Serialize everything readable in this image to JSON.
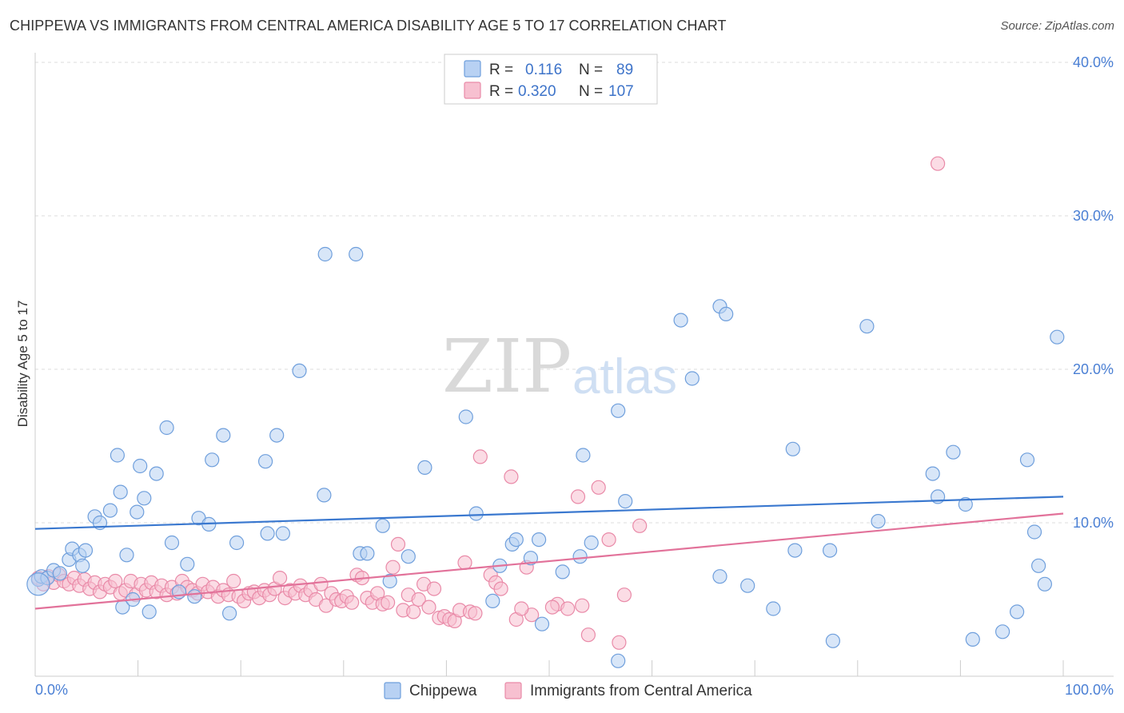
{
  "title": "CHIPPEWA VS IMMIGRANTS FROM CENTRAL AMERICA DISABILITY AGE 5 TO 17 CORRELATION CHART",
  "source": "Source: ZipAtlas.com",
  "watermark": {
    "zip": "ZIP",
    "atlas": "atlas"
  },
  "colors": {
    "blue_fill": "#b8d1f3",
    "blue_stroke": "#6f9fdc",
    "blue_line": "#3a78cf",
    "pink_fill": "#f7c0d0",
    "pink_stroke": "#e98aa8",
    "pink_line": "#e2729a",
    "grid": "#dddddd",
    "tick_text": "#4a7fd4"
  },
  "legend": {
    "rows": [
      {
        "r_label": "R =",
        "r_value": "0.116",
        "n_label": "N =",
        "n_value": "89"
      },
      {
        "r_label": "R =",
        "r_value": "0.320",
        "n_label": "N =",
        "n_value": "107"
      }
    ]
  },
  "chart_data": {
    "type": "scatter",
    "title": "CHIPPEWA VS IMMIGRANTS FROM CENTRAL AMERICA DISABILITY AGE 5 TO 17 CORRELATION CHART",
    "xlabel": "",
    "ylabel": "Disability Age 5 to 17",
    "xlim": [
      0,
      100
    ],
    "ylim": [
      0,
      40
    ],
    "x_tick_labels": [
      "0.0%",
      "100.0%"
    ],
    "y_ticks": [
      10,
      20,
      30,
      40
    ],
    "y_tick_labels": [
      "10.0%",
      "20.0%",
      "30.0%",
      "40.0%"
    ],
    "grid": true,
    "legend_position": "top-center",
    "series": [
      {
        "name": "Chippewa",
        "color": "blue",
        "R": 0.116,
        "N": 89,
        "trend": {
          "x": [
            0,
            100
          ],
          "y": [
            9.6,
            11.7
          ]
        },
        "points": [
          [
            0.3,
            6.3
          ],
          [
            0.6,
            6.5
          ],
          [
            1.2,
            6.4
          ],
          [
            1.8,
            6.9
          ],
          [
            2.4,
            6.7
          ],
          [
            3.3,
            7.6
          ],
          [
            3.6,
            8.3
          ],
          [
            4.3,
            7.9
          ],
          [
            4.9,
            8.2
          ],
          [
            4.6,
            7.2
          ],
          [
            5.8,
            10.4
          ],
          [
            6.3,
            10.0
          ],
          [
            7.3,
            10.8
          ],
          [
            8.0,
            14.4
          ],
          [
            8.3,
            12.0
          ],
          [
            8.5,
            4.5
          ],
          [
            8.9,
            7.9
          ],
          [
            9.5,
            5.0
          ],
          [
            9.9,
            10.7
          ],
          [
            10.2,
            13.7
          ],
          [
            10.6,
            11.6
          ],
          [
            11.1,
            4.2
          ],
          [
            11.8,
            13.2
          ],
          [
            12.8,
            16.2
          ],
          [
            13.3,
            8.7
          ],
          [
            14.0,
            5.5
          ],
          [
            14.8,
            7.3
          ],
          [
            15.5,
            5.2
          ],
          [
            15.9,
            10.3
          ],
          [
            16.9,
            9.9
          ],
          [
            17.2,
            14.1
          ],
          [
            18.3,
            15.7
          ],
          [
            18.9,
            4.1
          ],
          [
            19.6,
            8.7
          ],
          [
            22.4,
            14.0
          ],
          [
            22.6,
            9.3
          ],
          [
            23.5,
            15.7
          ],
          [
            24.1,
            9.3
          ],
          [
            25.7,
            19.9
          ],
          [
            28.2,
            27.5
          ],
          [
            28.1,
            11.8
          ],
          [
            31.2,
            27.5
          ],
          [
            31.6,
            8.0
          ],
          [
            32.3,
            8.0
          ],
          [
            33.8,
            9.8
          ],
          [
            34.5,
            6.2
          ],
          [
            36.3,
            7.8
          ],
          [
            37.9,
            13.6
          ],
          [
            41.9,
            16.9
          ],
          [
            42.9,
            10.6
          ],
          [
            44.5,
            4.9
          ],
          [
            45.2,
            7.2
          ],
          [
            46.4,
            8.6
          ],
          [
            46.8,
            8.9
          ],
          [
            49.0,
            8.9
          ],
          [
            48.2,
            7.7
          ],
          [
            49.3,
            3.4
          ],
          [
            51.3,
            6.8
          ],
          [
            53.0,
            7.8
          ],
          [
            53.3,
            14.4
          ],
          [
            54.1,
            8.7
          ],
          [
            56.7,
            17.3
          ],
          [
            57.4,
            11.4
          ],
          [
            62.8,
            23.2
          ],
          [
            63.9,
            19.4
          ],
          [
            66.6,
            24.1
          ],
          [
            67.2,
            23.6
          ],
          [
            66.6,
            6.5
          ],
          [
            71.8,
            4.4
          ],
          [
            73.7,
            14.8
          ],
          [
            73.9,
            8.2
          ],
          [
            77.6,
            2.3
          ],
          [
            77.3,
            8.2
          ],
          [
            80.9,
            22.8
          ],
          [
            82.0,
            10.1
          ],
          [
            87.3,
            13.2
          ],
          [
            87.8,
            11.7
          ],
          [
            89.3,
            14.6
          ],
          [
            90.5,
            11.2
          ],
          [
            91.2,
            2.4
          ],
          [
            94.1,
            2.9
          ],
          [
            95.5,
            4.2
          ],
          [
            96.5,
            14.1
          ],
          [
            97.2,
            9.4
          ],
          [
            97.6,
            7.2
          ],
          [
            98.2,
            6.0
          ],
          [
            99.4,
            22.1
          ],
          [
            56.7,
            1.0
          ],
          [
            69.3,
            5.9
          ]
        ]
      },
      {
        "name": "Immigrants from Central America",
        "color": "pink",
        "R": 0.32,
        "N": 107,
        "trend": {
          "x": [
            0,
            100
          ],
          "y": [
            4.4,
            10.6
          ]
        },
        "points": [
          [
            0.3,
            6.4
          ],
          [
            0.8,
            6.0
          ],
          [
            1.3,
            6.5
          ],
          [
            1.8,
            6.1
          ],
          [
            2.3,
            6.6
          ],
          [
            2.8,
            6.2
          ],
          [
            3.3,
            6.0
          ],
          [
            3.8,
            6.4
          ],
          [
            4.3,
            5.9
          ],
          [
            4.8,
            6.3
          ],
          [
            5.3,
            5.7
          ],
          [
            5.8,
            6.1
          ],
          [
            6.3,
            5.5
          ],
          [
            6.8,
            6.0
          ],
          [
            7.3,
            5.8
          ],
          [
            7.8,
            6.2
          ],
          [
            8.3,
            5.4
          ],
          [
            8.8,
            5.6
          ],
          [
            9.3,
            6.2
          ],
          [
            9.8,
            5.3
          ],
          [
            10.3,
            6.0
          ],
          [
            10.8,
            5.6
          ],
          [
            11.3,
            6.1
          ],
          [
            11.8,
            5.5
          ],
          [
            12.3,
            5.9
          ],
          [
            12.8,
            5.3
          ],
          [
            13.3,
            5.8
          ],
          [
            13.8,
            5.4
          ],
          [
            14.3,
            6.2
          ],
          [
            14.8,
            5.8
          ],
          [
            15.3,
            5.6
          ],
          [
            15.8,
            5.4
          ],
          [
            16.3,
            6.0
          ],
          [
            16.8,
            5.5
          ],
          [
            17.3,
            5.8
          ],
          [
            17.8,
            5.2
          ],
          [
            18.3,
            5.6
          ],
          [
            18.8,
            5.3
          ],
          [
            19.3,
            6.2
          ],
          [
            19.8,
            5.2
          ],
          [
            20.3,
            4.9
          ],
          [
            20.8,
            5.4
          ],
          [
            21.3,
            5.5
          ],
          [
            21.8,
            5.1
          ],
          [
            22.3,
            5.6
          ],
          [
            22.8,
            5.3
          ],
          [
            23.3,
            5.7
          ],
          [
            23.8,
            6.4
          ],
          [
            24.3,
            5.1
          ],
          [
            24.8,
            5.6
          ],
          [
            25.3,
            5.4
          ],
          [
            25.8,
            5.9
          ],
          [
            26.3,
            5.3
          ],
          [
            26.8,
            5.6
          ],
          [
            27.3,
            5.0
          ],
          [
            27.8,
            6.0
          ],
          [
            28.3,
            4.6
          ],
          [
            28.8,
            5.4
          ],
          [
            29.3,
            5.0
          ],
          [
            29.8,
            4.9
          ],
          [
            30.3,
            5.2
          ],
          [
            30.8,
            4.8
          ],
          [
            31.3,
            6.6
          ],
          [
            31.8,
            6.4
          ],
          [
            32.3,
            5.1
          ],
          [
            32.8,
            4.8
          ],
          [
            33.3,
            5.4
          ],
          [
            33.8,
            4.7
          ],
          [
            34.3,
            4.8
          ],
          [
            34.8,
            7.1
          ],
          [
            35.3,
            8.6
          ],
          [
            35.8,
            4.3
          ],
          [
            36.3,
            5.3
          ],
          [
            36.8,
            4.2
          ],
          [
            37.3,
            5.0
          ],
          [
            37.8,
            6.0
          ],
          [
            38.3,
            4.5
          ],
          [
            38.8,
            5.7
          ],
          [
            39.3,
            3.8
          ],
          [
            39.8,
            3.9
          ],
          [
            40.3,
            3.7
          ],
          [
            40.8,
            3.6
          ],
          [
            41.3,
            4.3
          ],
          [
            41.8,
            7.4
          ],
          [
            42.3,
            4.2
          ],
          [
            42.8,
            4.1
          ],
          [
            43.3,
            14.3
          ],
          [
            44.3,
            6.6
          ],
          [
            44.8,
            6.1
          ],
          [
            45.3,
            5.7
          ],
          [
            46.8,
            3.7
          ],
          [
            47.8,
            7.1
          ],
          [
            48.3,
            4.0
          ],
          [
            50.8,
            4.7
          ],
          [
            51.8,
            4.4
          ],
          [
            53.2,
            4.6
          ],
          [
            52.8,
            11.7
          ],
          [
            54.8,
            12.3
          ],
          [
            55.8,
            8.9
          ],
          [
            56.8,
            2.2
          ],
          [
            57.3,
            5.3
          ],
          [
            58.8,
            9.8
          ],
          [
            50.3,
            4.5
          ],
          [
            47.3,
            4.4
          ],
          [
            46.3,
            13.0
          ],
          [
            53.8,
            2.7
          ],
          [
            87.8,
            33.4
          ]
        ]
      }
    ]
  },
  "bottom_legend": {
    "items": [
      {
        "label": "Chippewa"
      },
      {
        "label": "Immigrants from Central America"
      }
    ]
  }
}
